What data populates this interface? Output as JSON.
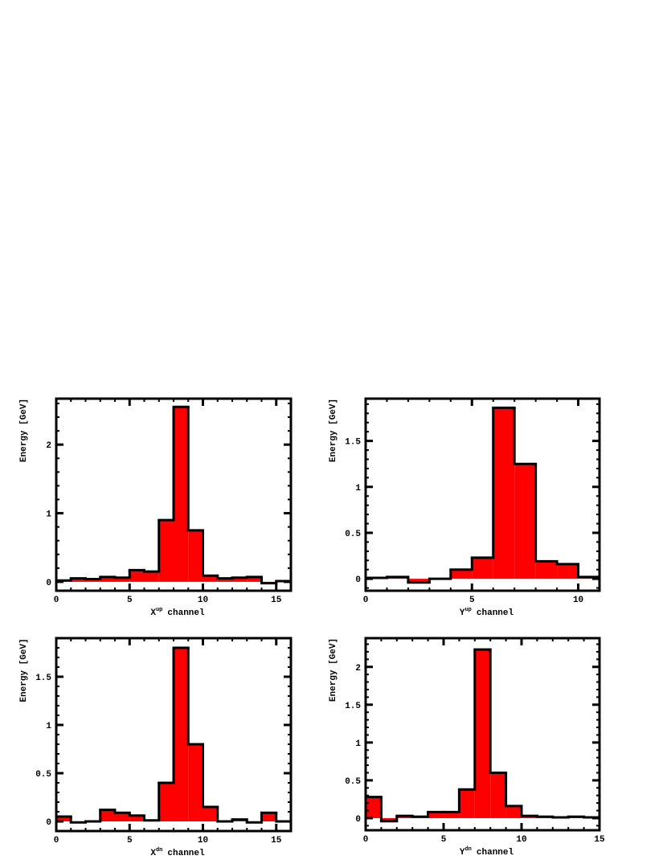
{
  "chart_data": [
    {
      "type": "histogram",
      "ylabel": "Energy [GeV]",
      "xlabel": {
        "base": "X",
        "sup": "up",
        "text": "channel"
      },
      "bins": [
        0,
        1,
        2,
        3,
        4,
        5,
        6,
        7,
        8,
        9,
        10,
        11,
        12,
        13,
        14,
        15,
        16
      ],
      "values": [
        0.02,
        0.05,
        0.04,
        0.07,
        0.06,
        0.17,
        0.15,
        0.9,
        2.55,
        0.75,
        0.09,
        0.05,
        0.06,
        0.07,
        -0.02,
        0.01
      ],
      "color": "#ff0000",
      "xlim": [
        0,
        16
      ],
      "ylim": [
        -0.13,
        2.67
      ],
      "xticks": [
        0,
        5,
        10,
        15
      ],
      "yticks": [
        0,
        1,
        2
      ]
    },
    {
      "type": "histogram",
      "ylabel": "Energy [GeV]",
      "xlabel": {
        "base": "Y",
        "sup": "up",
        "text": "channel"
      },
      "bins": [
        0,
        1,
        2,
        3,
        4,
        5,
        6,
        7,
        8,
        9,
        10,
        11
      ],
      "values": [
        0.01,
        0.02,
        -0.04,
        0.0,
        0.1,
        0.23,
        1.86,
        1.25,
        0.19,
        0.16,
        0.02
      ],
      "color": "#ff0000",
      "xlim": [
        0,
        11
      ],
      "ylim": [
        -0.13,
        1.96
      ],
      "xticks": [
        0,
        5,
        10
      ],
      "yticks": [
        0,
        0.5,
        1,
        1.5
      ]
    },
    {
      "type": "histogram",
      "ylabel": "Energy [GeV]",
      "xlabel": {
        "base": "X",
        "sup": "dn",
        "text": "channel"
      },
      "bins": [
        0,
        1,
        2,
        3,
        4,
        5,
        6,
        7,
        8,
        9,
        10,
        11,
        12,
        13,
        14,
        15,
        16
      ],
      "values": [
        0.05,
        -0.01,
        0.0,
        0.12,
        0.09,
        0.06,
        0.01,
        0.4,
        1.8,
        0.8,
        0.15,
        0.0,
        0.02,
        -0.01,
        0.09,
        0.0
      ],
      "color": "#ff0000",
      "xlim": [
        0,
        16
      ],
      "ylim": [
        -0.1,
        1.9
      ],
      "xticks": [
        0,
        5,
        10,
        15
      ],
      "yticks": [
        0,
        0.5,
        1,
        1.5
      ]
    },
    {
      "type": "histogram",
      "ylabel": "Energy [GeV]",
      "xlabel": {
        "base": "Y",
        "sup": "dn",
        "text": "channel"
      },
      "bins": [
        0,
        1,
        2,
        3,
        4,
        5,
        6,
        7,
        8,
        9,
        10,
        11,
        12,
        13,
        14,
        15
      ],
      "values": [
        0.28,
        -0.04,
        0.03,
        0.02,
        0.08,
        0.08,
        0.38,
        2.23,
        0.6,
        0.16,
        0.03,
        0.02,
        0.01,
        0.02,
        0.01
      ],
      "color": "#ff0000",
      "xlim": [
        0,
        15
      ],
      "ylim": [
        -0.16,
        2.38
      ],
      "xticks": [
        0,
        5,
        10,
        15
      ],
      "yticks": [
        0,
        0.5,
        1,
        1.5,
        2
      ]
    }
  ]
}
